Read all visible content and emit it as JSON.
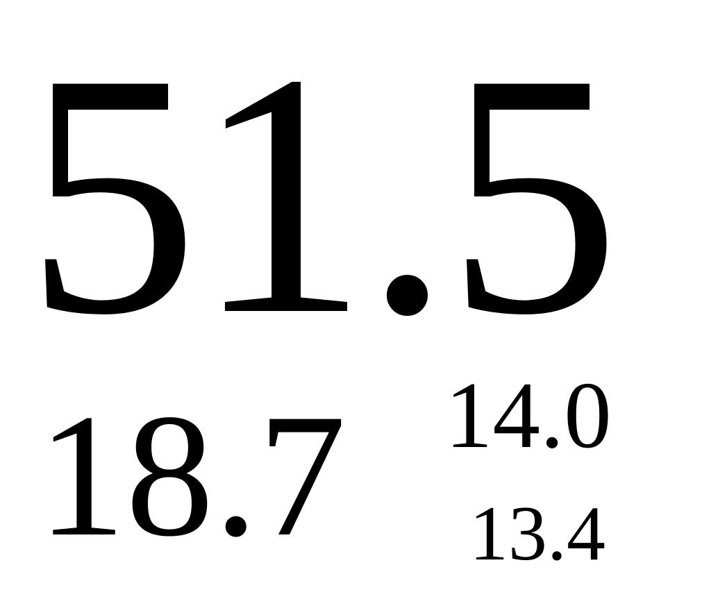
{
  "values": {
    "main": "51.5",
    "secondary": "18.7",
    "upper_right": "14.0",
    "lower_right": "13.4"
  }
}
